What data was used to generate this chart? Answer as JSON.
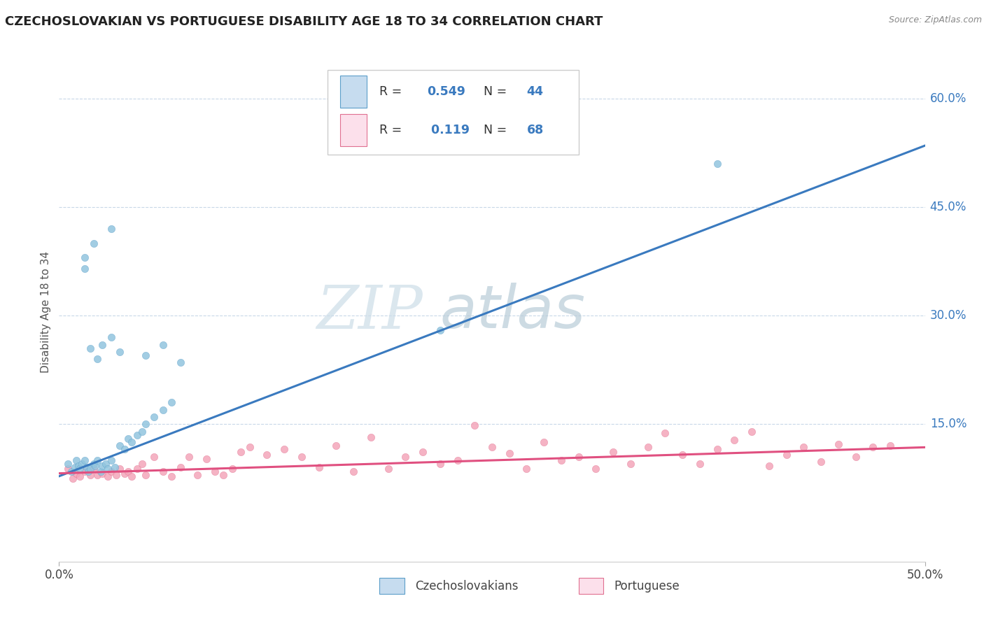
{
  "title": "CZECHOSLOVAKIAN VS PORTUGUESE DISABILITY AGE 18 TO 34 CORRELATION CHART",
  "source_text": "Source: ZipAtlas.com",
  "ylabel": "Disability Age 18 to 34",
  "xlim": [
    0.0,
    0.5
  ],
  "ylim": [
    -0.04,
    0.65
  ],
  "plot_ylim": [
    0.0,
    0.65
  ],
  "ytick_labels": [
    "15.0%",
    "30.0%",
    "45.0%",
    "60.0%"
  ],
  "ytick_values": [
    0.15,
    0.3,
    0.45,
    0.6
  ],
  "blue_color": "#92c5de",
  "blue_edge": "#5b9ec9",
  "blue_fill": "#c6dcef",
  "pink_color": "#f4a6ba",
  "pink_edge": "#e07090",
  "pink_fill": "#fce0eb",
  "line_blue": "#3a7abf",
  "line_pink": "#e05080",
  "watermark_color": "#d8e8f0",
  "watermark_color2": "#d0e0ec",
  "background_color": "#ffffff",
  "grid_color": "#c8d8e8",
  "cz_x": [
    0.005,
    0.007,
    0.009,
    0.01,
    0.011,
    0.012,
    0.013,
    0.015,
    0.016,
    0.017,
    0.018,
    0.02,
    0.021,
    0.022,
    0.024,
    0.025,
    0.027,
    0.028,
    0.03,
    0.032,
    0.035,
    0.038,
    0.04,
    0.042,
    0.045,
    0.048,
    0.05,
    0.055,
    0.06,
    0.065,
    0.018,
    0.022,
    0.025,
    0.03,
    0.035,
    0.05,
    0.06,
    0.07,
    0.015,
    0.02,
    0.03,
    0.22,
    0.38,
    0.015
  ],
  "cz_y": [
    0.095,
    0.085,
    0.09,
    0.1,
    0.092,
    0.088,
    0.095,
    0.1,
    0.09,
    0.085,
    0.088,
    0.095,
    0.092,
    0.1,
    0.085,
    0.092,
    0.095,
    0.088,
    0.1,
    0.09,
    0.12,
    0.115,
    0.13,
    0.125,
    0.135,
    0.14,
    0.15,
    0.16,
    0.17,
    0.18,
    0.255,
    0.24,
    0.26,
    0.27,
    0.25,
    0.245,
    0.26,
    0.235,
    0.365,
    0.4,
    0.42,
    0.28,
    0.51,
    0.38
  ],
  "pt_x": [
    0.005,
    0.008,
    0.01,
    0.012,
    0.015,
    0.018,
    0.02,
    0.022,
    0.025,
    0.028,
    0.03,
    0.033,
    0.035,
    0.038,
    0.04,
    0.042,
    0.045,
    0.048,
    0.05,
    0.055,
    0.06,
    0.065,
    0.07,
    0.075,
    0.08,
    0.085,
    0.09,
    0.095,
    0.1,
    0.105,
    0.11,
    0.12,
    0.13,
    0.14,
    0.15,
    0.16,
    0.17,
    0.18,
    0.19,
    0.2,
    0.21,
    0.22,
    0.23,
    0.24,
    0.25,
    0.26,
    0.27,
    0.28,
    0.29,
    0.3,
    0.31,
    0.32,
    0.33,
    0.34,
    0.35,
    0.36,
    0.37,
    0.38,
    0.39,
    0.4,
    0.41,
    0.42,
    0.43,
    0.44,
    0.45,
    0.46,
    0.47,
    0.48
  ],
  "pt_y": [
    0.088,
    0.075,
    0.082,
    0.078,
    0.085,
    0.08,
    0.088,
    0.08,
    0.082,
    0.078,
    0.085,
    0.08,
    0.088,
    0.082,
    0.085,
    0.078,
    0.088,
    0.095,
    0.08,
    0.105,
    0.085,
    0.078,
    0.09,
    0.105,
    0.08,
    0.102,
    0.085,
    0.08,
    0.088,
    0.112,
    0.118,
    0.108,
    0.115,
    0.105,
    0.09,
    0.12,
    0.085,
    0.132,
    0.088,
    0.105,
    0.112,
    0.095,
    0.1,
    0.148,
    0.118,
    0.11,
    0.088,
    0.125,
    0.1,
    0.105,
    0.088,
    0.112,
    0.095,
    0.118,
    0.138,
    0.108,
    0.095,
    0.115,
    0.128,
    0.14,
    0.092,
    0.108,
    0.118,
    0.098,
    0.122,
    0.105,
    0.118,
    0.12
  ],
  "blue_line_y0": 0.078,
  "blue_line_y1": 0.535,
  "pink_line_y0": 0.082,
  "pink_line_y1": 0.118
}
